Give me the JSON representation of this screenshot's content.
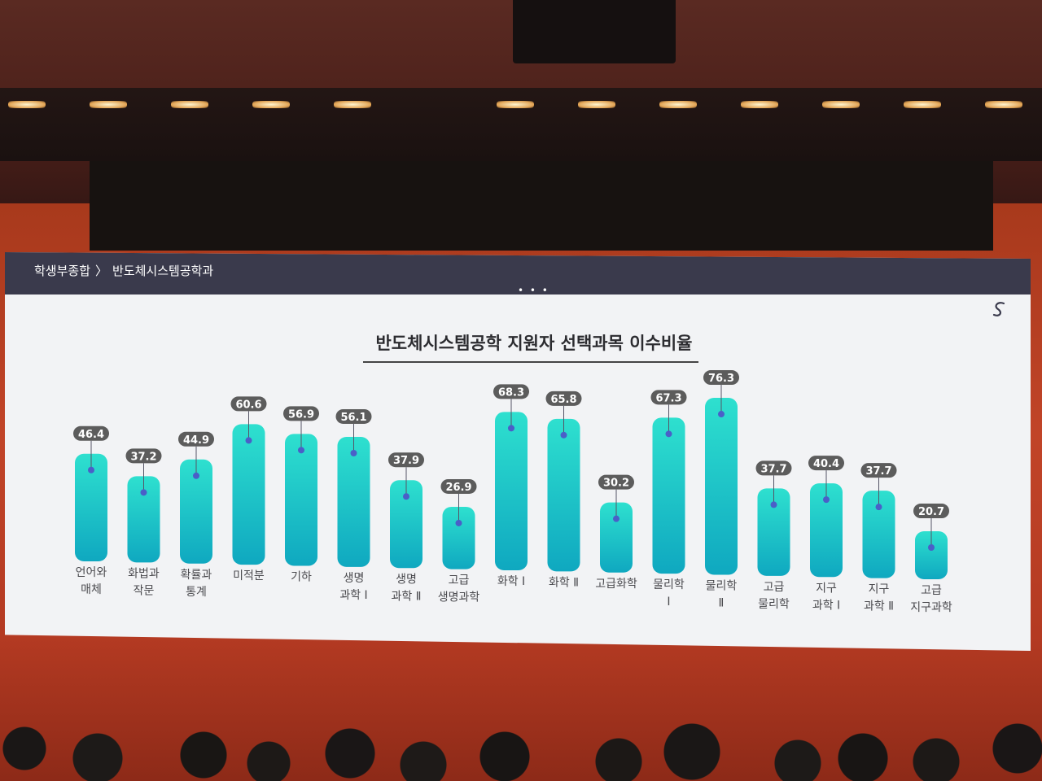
{
  "breadcrumb": {
    "section": "학생부종합",
    "separator": "〉",
    "page": "반도체시스템공학과"
  },
  "menu_dots": "• • •",
  "logo_icon": "s-curve-logo-icon",
  "colors": {
    "bar_top": "#2ee0cf",
    "bar_bottom": "#0fa8c0",
    "label_pill": "#5c5c5c",
    "dot": "#4a5fc8"
  },
  "chart_data": {
    "type": "bar",
    "title": "반도체시스템공학 지원자 선택과목 이수비율",
    "xlabel": "",
    "ylabel": "",
    "ylim": [
      0,
      80
    ],
    "categories": [
      [
        "언어와",
        "매체"
      ],
      [
        "화법과",
        "작문"
      ],
      [
        "확률과",
        "통계"
      ],
      [
        "미적분"
      ],
      [
        "기하"
      ],
      [
        "생명",
        "과학 Ⅰ"
      ],
      [
        "생명",
        "과학 Ⅱ"
      ],
      [
        "고급",
        "생명과학"
      ],
      [
        "화학 Ⅰ"
      ],
      [
        "화학 Ⅱ"
      ],
      [
        "고급화학"
      ],
      [
        "물리학",
        "Ⅰ"
      ],
      [
        "물리학",
        "Ⅱ"
      ],
      [
        "고급",
        "물리학"
      ],
      [
        "지구",
        "과학 Ⅰ"
      ],
      [
        "지구",
        "과학 Ⅱ"
      ],
      [
        "고급",
        "지구과학"
      ]
    ],
    "values": [
      46.4,
      37.2,
      44.9,
      60.6,
      56.9,
      56.1,
      37.9,
      26.9,
      68.3,
      65.8,
      30.2,
      67.3,
      76.3,
      37.7,
      40.4,
      37.7,
      20.7
    ],
    "value_labels": [
      "46.4",
      "37.2",
      "44.9",
      "60.6",
      "56.9",
      "56.1",
      "37.9",
      "26.9",
      "68.3",
      "65.8",
      "30.2",
      "67.3",
      "76.3",
      "37.7",
      "40.4",
      "37.7",
      "20.7"
    ]
  }
}
